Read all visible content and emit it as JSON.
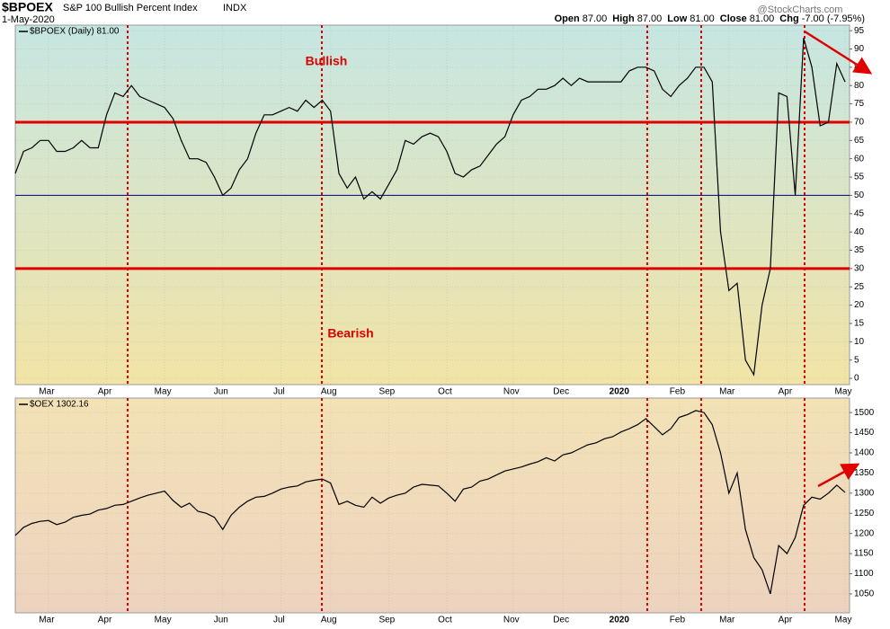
{
  "header": {
    "symbol": "$BPOEX",
    "name": "S&P 100 Bullish Percent Index",
    "exchange": "INDX",
    "date": "1-May-2020",
    "quote": [
      {
        "label": "Open",
        "value": "87.00"
      },
      {
        "label": "High",
        "value": "87.00"
      },
      {
        "label": "Low",
        "value": "81.00"
      },
      {
        "label": "Close",
        "value": "81.00"
      },
      {
        "label": "Chg",
        "value": "-7.00 (-7.95%)"
      }
    ],
    "watermark": "@StockCharts.com"
  },
  "chart_data": [
    {
      "type": "line",
      "categories": [
        null,
        null,
        null,
        null,
        "Mar",
        null,
        null,
        null,
        null,
        null,
        null,
        "Apr",
        null,
        null,
        null,
        null,
        null,
        null,
        "May",
        null,
        null,
        null,
        null,
        null,
        null,
        "Jun",
        null,
        null,
        null,
        null,
        null,
        null,
        "Jul",
        null,
        null,
        null,
        null,
        null,
        "Aug",
        null,
        null,
        null,
        null,
        null,
        null,
        "Sep",
        null,
        null,
        null,
        null,
        null,
        null,
        "Oct",
        null,
        null,
        null,
        null,
        null,
        null,
        null,
        "Nov",
        null,
        null,
        null,
        null,
        null,
        "Dec",
        null,
        null,
        null,
        null,
        null,
        null,
        "2020",
        null,
        null,
        null,
        null,
        null,
        null,
        "Feb",
        null,
        null,
        null,
        null,
        null,
        "Mar",
        null,
        null,
        null,
        null,
        null,
        null,
        "Apr",
        null,
        null,
        null,
        null,
        null,
        null,
        "May"
      ],
      "series": [
        {
          "name": "$BPOEX (Daily) 81.00",
          "color": "#000000",
          "values": [
            56,
            62,
            63,
            65,
            65,
            62,
            62,
            63,
            65,
            63,
            63,
            72,
            78,
            77,
            80,
            77,
            76,
            75,
            74,
            71,
            65,
            60,
            60,
            59,
            55,
            50,
            52,
            57,
            60,
            67,
            72,
            72,
            73,
            74,
            73,
            76,
            74,
            76,
            73,
            56,
            52,
            55,
            49,
            51,
            49,
            53,
            57,
            65,
            64,
            66,
            67,
            66,
            62,
            56,
            55,
            57,
            58,
            61,
            64,
            66,
            72,
            76,
            77,
            79,
            79,
            80,
            82,
            80,
            82,
            81,
            81,
            81,
            81,
            81,
            84,
            85,
            85,
            84,
            79,
            77,
            80,
            82,
            85,
            85,
            81,
            40,
            24,
            26,
            5,
            1,
            20,
            30,
            78,
            77,
            50,
            93,
            85,
            69,
            70,
            86,
            81
          ]
        }
      ],
      "ylim": [
        -1.7,
        96.5
      ],
      "yticks": [
        0,
        5,
        10,
        15,
        20,
        25,
        30,
        35,
        40,
        45,
        50,
        55,
        60,
        65,
        70,
        75,
        80,
        85,
        90,
        95
      ],
      "hlines": [
        {
          "value": 70,
          "color": "#e00000"
        },
        {
          "value": 30,
          "color": "#e00000"
        },
        {
          "value": 50,
          "color": "#000080"
        }
      ],
      "annotations": [
        "Bullish",
        "Bearish"
      ]
    },
    {
      "type": "line",
      "categories": [
        null,
        null,
        null,
        null,
        "Mar",
        null,
        null,
        null,
        null,
        null,
        null,
        "Apr",
        null,
        null,
        null,
        null,
        null,
        null,
        "May",
        null,
        null,
        null,
        null,
        null,
        null,
        "Jun",
        null,
        null,
        null,
        null,
        null,
        null,
        "Jul",
        null,
        null,
        null,
        null,
        null,
        "Aug",
        null,
        null,
        null,
        null,
        null,
        null,
        "Sep",
        null,
        null,
        null,
        null,
        null,
        null,
        "Oct",
        null,
        null,
        null,
        null,
        null,
        null,
        null,
        "Nov",
        null,
        null,
        null,
        null,
        null,
        "Dec",
        null,
        null,
        null,
        null,
        null,
        null,
        "2020",
        null,
        null,
        null,
        null,
        null,
        null,
        "Feb",
        null,
        null,
        null,
        null,
        null,
        "Mar",
        null,
        null,
        null,
        null,
        null,
        null,
        "Apr",
        null,
        null,
        null,
        null,
        null,
        null,
        "May"
      ],
      "series": [
        {
          "name": "$OEX 1302.16",
          "color": "#000000",
          "values": [
            1195,
            1215,
            1225,
            1230,
            1232,
            1222,
            1228,
            1240,
            1245,
            1248,
            1258,
            1262,
            1270,
            1272,
            1280,
            1288,
            1295,
            1300,
            1305,
            1282,
            1265,
            1275,
            1255,
            1250,
            1240,
            1210,
            1245,
            1265,
            1280,
            1290,
            1292,
            1300,
            1310,
            1315,
            1318,
            1328,
            1332,
            1335,
            1325,
            1272,
            1280,
            1270,
            1265,
            1290,
            1275,
            1288,
            1295,
            1300,
            1315,
            1322,
            1320,
            1318,
            1300,
            1280,
            1310,
            1315,
            1330,
            1335,
            1345,
            1355,
            1360,
            1365,
            1372,
            1378,
            1388,
            1380,
            1395,
            1400,
            1410,
            1420,
            1425,
            1435,
            1440,
            1452,
            1460,
            1470,
            1485,
            1465,
            1445,
            1460,
            1488,
            1495,
            1505,
            1500,
            1470,
            1400,
            1300,
            1350,
            1210,
            1140,
            1110,
            1050,
            1170,
            1150,
            1190,
            1270,
            1290,
            1285,
            1300,
            1320,
            1302
          ]
        }
      ],
      "ylim": [
        1003,
        1536
      ],
      "yticks": [
        1050,
        1100,
        1150,
        1200,
        1250,
        1300,
        1350,
        1400,
        1450,
        1500
      ]
    }
  ]
}
